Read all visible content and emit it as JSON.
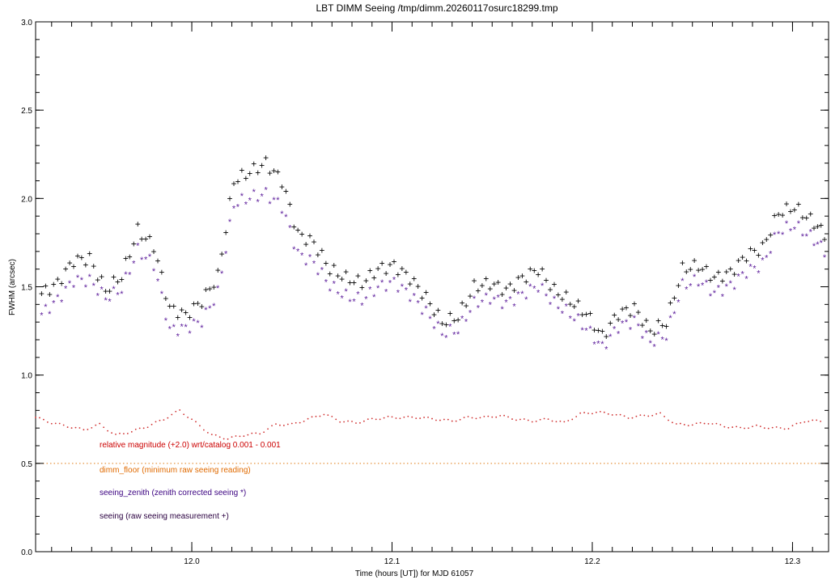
{
  "chart_data": {
    "type": "scatter",
    "title": "LBT DIMM Seeing  /tmp/dimm.20260117osurc18299.tmp",
    "xlabel": "Time (hours [UT]) for MJD     61057",
    "ylabel": "FWHM (arcsec)",
    "xlim": [
      11.922,
      12.318
    ],
    "ylim": [
      0,
      3.0
    ],
    "x_ticks": [
      {
        "value": 12.0,
        "label": "12.0"
      },
      {
        "value": 12.1,
        "label": "12.1"
      },
      {
        "value": 12.2,
        "label": "12.2"
      },
      {
        "value": 12.3,
        "label": "12.3"
      }
    ],
    "y_ticks": [
      {
        "value": 0.0,
        "label": "0.0"
      },
      {
        "value": 0.5,
        "label": "0.5"
      },
      {
        "value": 1.0,
        "label": "1.0"
      },
      {
        "value": 1.5,
        "label": "1.5"
      },
      {
        "value": 2.0,
        "label": "2.0"
      },
      {
        "value": 2.5,
        "label": "2.5"
      },
      {
        "value": 3.0,
        "label": "3.0"
      }
    ],
    "grid": false,
    "colors": {
      "seeing": "#000000",
      "seeing_zenith": "#5a1a9a",
      "relative_magnitude": "#d03030",
      "dimm_floor": "#e07a10"
    },
    "dimm_floor_value": 0.5,
    "legend": [
      {
        "key": "relative_magnitude",
        "text": "relative magnitude (+2.0) wrt/catalog  0.001 -  0.001",
        "color": "#cc0000"
      },
      {
        "key": "dimm_floor",
        "text": "dimm_floor  (minimum raw seeing reading)",
        "color": "#e06a00"
      },
      {
        "key": "seeing_zenith",
        "text": "seeing_zenith (zenith corrected seeing *)",
        "color": "#3a0080"
      },
      {
        "key": "seeing",
        "text": "seeing  (raw seeing measurement +)",
        "color": "#2a0040"
      }
    ],
    "series": [
      {
        "key": "seeing",
        "marker": "+",
        "x": [
          11.925,
          11.933,
          11.941,
          11.949,
          11.957,
          11.965,
          11.973,
          11.981,
          11.989,
          11.997,
          12.005,
          12.013,
          12.021,
          12.029,
          12.037,
          12.045,
          12.053,
          12.061,
          12.069,
          12.077,
          12.085,
          12.093,
          12.101,
          12.109,
          12.117,
          12.125,
          12.133,
          12.141,
          12.149,
          12.157,
          12.165,
          12.173,
          12.181,
          12.189,
          12.197,
          12.205,
          12.213,
          12.221,
          12.229,
          12.237,
          12.245,
          12.253,
          12.261,
          12.269,
          12.277,
          12.285,
          12.293,
          12.301,
          12.309,
          12.316
        ],
        "y": [
          1.46,
          1.52,
          1.65,
          1.66,
          1.48,
          1.56,
          1.82,
          1.73,
          1.38,
          1.34,
          1.42,
          1.56,
          2.1,
          2.15,
          2.2,
          2.1,
          1.8,
          1.75,
          1.6,
          1.55,
          1.52,
          1.6,
          1.62,
          1.55,
          1.44,
          1.3,
          1.33,
          1.5,
          1.52,
          1.48,
          1.55,
          1.6,
          1.48,
          1.42,
          1.35,
          1.22,
          1.35,
          1.38,
          1.25,
          1.3,
          1.6,
          1.62,
          1.55,
          1.58,
          1.68,
          1.72,
          1.92,
          1.95,
          1.88,
          1.8
        ]
      },
      {
        "key": "seeing_zenith",
        "marker": "*",
        "x": [
          11.925,
          11.933,
          11.941,
          11.949,
          11.957,
          11.965,
          11.973,
          11.981,
          11.989,
          11.997,
          12.005,
          12.013,
          12.021,
          12.029,
          12.037,
          12.045,
          12.053,
          12.061,
          12.069,
          12.077,
          12.085,
          12.093,
          12.101,
          12.109,
          12.117,
          12.125,
          12.133,
          12.141,
          12.149,
          12.157,
          12.165,
          12.173,
          12.181,
          12.189,
          12.197,
          12.205,
          12.213,
          12.221,
          12.229,
          12.237,
          12.245,
          12.253,
          12.261,
          12.269,
          12.277,
          12.285,
          12.293,
          12.301,
          12.309,
          12.316
        ],
        "y": [
          1.34,
          1.42,
          1.53,
          1.53,
          1.43,
          1.48,
          1.7,
          1.62,
          1.25,
          1.26,
          1.3,
          1.46,
          1.96,
          2.0,
          2.02,
          1.95,
          1.68,
          1.63,
          1.5,
          1.44,
          1.42,
          1.49,
          1.52,
          1.45,
          1.35,
          1.23,
          1.25,
          1.4,
          1.43,
          1.4,
          1.45,
          1.5,
          1.4,
          1.34,
          1.26,
          1.15,
          1.27,
          1.3,
          1.18,
          1.22,
          1.5,
          1.53,
          1.46,
          1.5,
          1.58,
          1.62,
          1.81,
          1.84,
          1.78,
          1.7
        ]
      },
      {
        "key": "relative_magnitude",
        "marker": ".",
        "x": [
          11.922,
          11.93,
          11.938,
          11.946,
          11.954,
          11.962,
          11.97,
          11.978,
          11.986,
          11.994,
          12.002,
          12.01,
          12.018,
          12.026,
          12.034,
          12.042,
          12.05,
          12.058,
          12.066,
          12.074,
          12.082,
          12.09,
          12.098,
          12.106,
          12.114,
          12.122,
          12.13,
          12.138,
          12.146,
          12.154,
          12.162,
          12.17,
          12.178,
          12.186,
          12.194,
          12.202,
          12.21,
          12.218,
          12.226,
          12.234,
          12.242,
          12.25,
          12.258,
          12.266,
          12.274,
          12.282,
          12.29,
          12.298,
          12.306,
          12.314
        ],
        "y": [
          0.76,
          0.73,
          0.71,
          0.69,
          0.72,
          0.66,
          0.68,
          0.71,
          0.75,
          0.8,
          0.73,
          0.66,
          0.64,
          0.66,
          0.67,
          0.72,
          0.72,
          0.75,
          0.78,
          0.74,
          0.73,
          0.75,
          0.76,
          0.76,
          0.76,
          0.75,
          0.74,
          0.76,
          0.76,
          0.77,
          0.75,
          0.74,
          0.75,
          0.73,
          0.78,
          0.79,
          0.78,
          0.76,
          0.77,
          0.78,
          0.72,
          0.72,
          0.73,
          0.71,
          0.7,
          0.71,
          0.7,
          0.7,
          0.74,
          0.74
        ]
      }
    ]
  }
}
